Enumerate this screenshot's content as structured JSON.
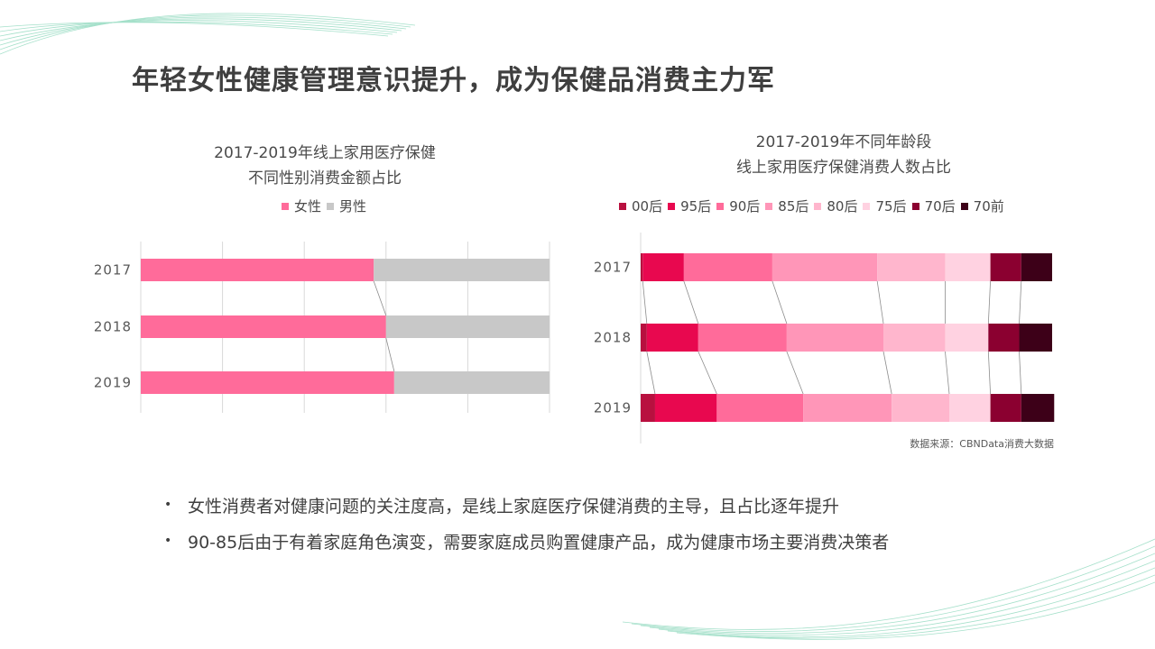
{
  "page": {
    "title": "年轻女性健康管理意识提升，成为保健品消费主力军",
    "source": "数据来源：CBNData消费大数据",
    "bullets": [
      "女性消费者对健康问题的关注度高，是线上家庭医疗保健消费的主导，且占比逐年提升",
      "90-85后由于有着家庭角色演变，需要家庭成员购置健康产品，成为健康市场主要消费决策者"
    ]
  },
  "chart_data": [
    {
      "type": "bar",
      "stacked": true,
      "orientation": "horizontal",
      "title_lines": [
        "2017-2019年线上家用医疗保健",
        "不同性别消费金额占比"
      ],
      "categories": [
        "2017",
        "2018",
        "2019"
      ],
      "xlim": [
        0,
        1
      ],
      "series": [
        {
          "name": "女性",
          "color": "#ff6b9a",
          "values": [
            0.57,
            0.6,
            0.62
          ]
        },
        {
          "name": "男性",
          "color": "#c8c8c8",
          "values": [
            0.43,
            0.4,
            0.38
          ]
        }
      ],
      "legend_position": "top"
    },
    {
      "type": "bar",
      "stacked": true,
      "orientation": "horizontal",
      "title_lines": [
        "2017-2019年不同年龄段",
        "线上家用医疗保健消费人数占比"
      ],
      "categories": [
        "2017",
        "2018",
        "2019"
      ],
      "xlim": [
        0,
        1
      ],
      "series": [
        {
          "name": "00后",
          "color": "#b8103f",
          "values": [
            0.005,
            0.015,
            0.035
          ]
        },
        {
          "name": "95后",
          "color": "#e8084f",
          "values": [
            0.1,
            0.125,
            0.15
          ]
        },
        {
          "name": "90后",
          "color": "#ff6b9a",
          "values": [
            0.215,
            0.215,
            0.21
          ]
        },
        {
          "name": "85后",
          "color": "#ff96b8",
          "values": [
            0.255,
            0.235,
            0.215
          ]
        },
        {
          "name": "80后",
          "color": "#ffb6cd",
          "values": [
            0.165,
            0.15,
            0.14
          ]
        },
        {
          "name": "75后",
          "color": "#ffd2e1",
          "values": [
            0.11,
            0.105,
            0.1
          ]
        },
        {
          "name": "70后",
          "color": "#8b0030",
          "values": [
            0.075,
            0.075,
            0.075
          ]
        },
        {
          "name": "70前",
          "color": "#3d0018",
          "values": [
            0.075,
            0.08,
            0.08
          ]
        }
      ],
      "legend_position": "top"
    }
  ]
}
